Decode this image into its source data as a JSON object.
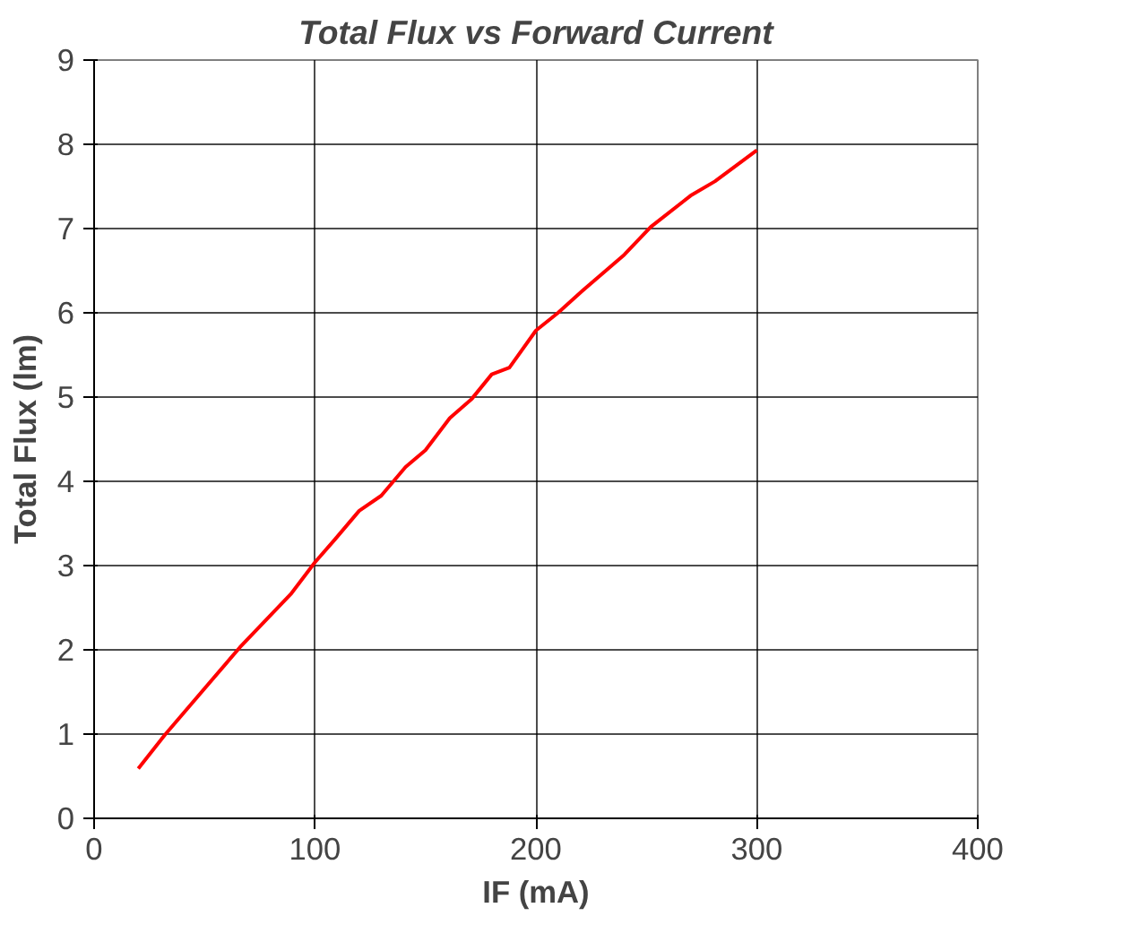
{
  "chart_data": {
    "type": "line",
    "title": "Total Flux vs Forward Current",
    "xlabel": "IF (mA)",
    "ylabel": "Total Flux (lm)",
    "x": [
      20,
      32,
      66,
      89,
      100,
      109,
      120,
      130,
      141,
      150,
      161,
      171,
      180,
      188,
      200,
      210,
      221,
      240,
      252,
      270,
      281,
      300
    ],
    "series": [
      {
        "color": "#ff0000",
        "values": [
          0.59,
          0.99,
          2.03,
          2.66,
          3.04,
          3.31,
          3.65,
          3.83,
          4.17,
          4.37,
          4.75,
          4.98,
          5.27,
          5.35,
          5.79,
          6.0,
          6.26,
          6.69,
          7.02,
          7.39,
          7.56,
          7.93
        ]
      }
    ],
    "xlim": [
      0,
      400
    ],
    "ylim": [
      0,
      9
    ],
    "xticks": [
      0,
      100,
      200,
      300,
      400
    ],
    "yticks": [
      0,
      1,
      2,
      3,
      4,
      5,
      6,
      7,
      8,
      9
    ],
    "grid": true,
    "marker": "none",
    "line_style": "solid"
  }
}
